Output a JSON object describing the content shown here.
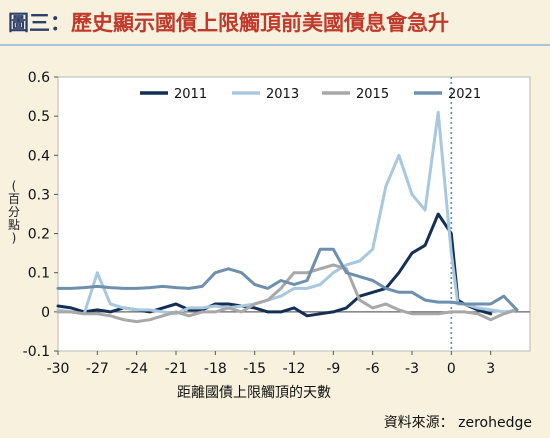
{
  "header": {
    "prefix": "圖三：",
    "title": "歷史顯示國債上限觸頂前美國債息會急升"
  },
  "source": "資料來源： zerohedge",
  "colors": {
    "s2011": "#142f56",
    "s2013": "#a8c8e0",
    "s2015": "#a8a8a8",
    "s2021": "#6e8fae",
    "dotted_line": "#6b8aa6",
    "background": "#f7f1de"
  },
  "chart_data": {
    "type": "line",
    "xlabel": "距離國債上限觸頂的天數",
    "ylabel": "(百分點)",
    "xlim": [
      -30,
      6
    ],
    "ylim": [
      -0.1,
      0.6
    ],
    "xticks": [
      -30,
      -27,
      -24,
      -21,
      -18,
      -15,
      -12,
      -9,
      -6,
      -3,
      0,
      3
    ],
    "yticks": [
      -0.1,
      0,
      0.1,
      0.2,
      0.3,
      0.4,
      0.5,
      0.6
    ],
    "yticklabels": [
      "-0.1",
      "0",
      "0.1",
      "0.2",
      "0.3",
      "0.4",
      "0.5",
      "0.6"
    ],
    "vline_x": 0,
    "grid": false,
    "legend_position": "top",
    "series": [
      {
        "name": "2011",
        "color_key": "s2011",
        "points": [
          [
            -30,
            0.015
          ],
          [
            -29,
            0.01
          ],
          [
            -28,
            0
          ],
          [
            -27,
            0.005
          ],
          [
            -26,
            0
          ],
          [
            -25,
            0.01
          ],
          [
            -24,
            0.005
          ],
          [
            -23,
            0
          ],
          [
            -22,
            0.01
          ],
          [
            -21,
            0.02
          ],
          [
            -20,
            0.005
          ],
          [
            -19,
            0.005
          ],
          [
            -18,
            0.02
          ],
          [
            -17,
            0.02
          ],
          [
            -16,
            0.015
          ],
          [
            -15,
            0.01
          ],
          [
            -14,
            0
          ],
          [
            -13,
            0
          ],
          [
            -12,
            0.01
          ],
          [
            -11,
            -0.01
          ],
          [
            -10,
            -0.005
          ],
          [
            -9,
            0
          ],
          [
            -8,
            0.01
          ],
          [
            -7,
            0.04
          ],
          [
            -6,
            0.05
          ],
          [
            -5,
            0.06
          ],
          [
            -4,
            0.1
          ],
          [
            -3,
            0.15
          ],
          [
            -2,
            0.17
          ],
          [
            -1,
            0.25
          ],
          [
            0,
            0.2
          ],
          [
            0.5,
            0.03
          ],
          [
            1,
            0.02
          ],
          [
            2,
            0.005
          ],
          [
            3,
            -0.005
          ]
        ]
      },
      {
        "name": "2013",
        "color_key": "s2013",
        "points": [
          [
            -30,
            0.005
          ],
          [
            -29,
            0
          ],
          [
            -28,
            -0.005
          ],
          [
            -27,
            0.1
          ],
          [
            -26,
            0.02
          ],
          [
            -25,
            0.01
          ],
          [
            -24,
            0.005
          ],
          [
            -23,
            0.005
          ],
          [
            -22,
            0
          ],
          [
            -21,
            -0.005
          ],
          [
            -20,
            0.01
          ],
          [
            -19,
            0.01
          ],
          [
            -18,
            0.015
          ],
          [
            -17,
            0.01
          ],
          [
            -16,
            0.015
          ],
          [
            -15,
            0.02
          ],
          [
            -14,
            0.03
          ],
          [
            -13,
            0.04
          ],
          [
            -12,
            0.06
          ],
          [
            -11,
            0.06
          ],
          [
            -10,
            0.07
          ],
          [
            -9,
            0.1
          ],
          [
            -8,
            0.12
          ],
          [
            -7,
            0.13
          ],
          [
            -6,
            0.16
          ],
          [
            -5,
            0.32
          ],
          [
            -4,
            0.4
          ],
          [
            -3,
            0.3
          ],
          [
            -2,
            0.26
          ],
          [
            -1,
            0.51
          ],
          [
            0,
            0.15
          ],
          [
            0.5,
            0.02
          ],
          [
            1,
            0.02
          ],
          [
            2,
            0.01
          ],
          [
            3,
            0.005
          ],
          [
            4,
            0
          ],
          [
            5,
            0.005
          ]
        ]
      },
      {
        "name": "2015",
        "color_key": "s2015",
        "points": [
          [
            -30,
            0
          ],
          [
            -29,
            0
          ],
          [
            -28,
            -0.005
          ],
          [
            -27,
            -0.005
          ],
          [
            -26,
            -0.01
          ],
          [
            -25,
            -0.02
          ],
          [
            -24,
            -0.025
          ],
          [
            -23,
            -0.02
          ],
          [
            -22,
            -0.01
          ],
          [
            -21,
            0
          ],
          [
            -20,
            -0.01
          ],
          [
            -19,
            0
          ],
          [
            -18,
            0
          ],
          [
            -17,
            0.01
          ],
          [
            -16,
            0
          ],
          [
            -15,
            0.02
          ],
          [
            -14,
            0.03
          ],
          [
            -13,
            0.06
          ],
          [
            -12,
            0.1
          ],
          [
            -11,
            0.1
          ],
          [
            -10,
            0.11
          ],
          [
            -9,
            0.12
          ],
          [
            -8,
            0.11
          ],
          [
            -7,
            0.03
          ],
          [
            -6,
            0.01
          ],
          [
            -5,
            0.02
          ],
          [
            -4,
            0.005
          ],
          [
            -3,
            -0.005
          ],
          [
            -2,
            -0.005
          ],
          [
            -1,
            -0.005
          ],
          [
            0,
            0
          ],
          [
            1,
            0
          ],
          [
            2,
            -0.005
          ],
          [
            3,
            -0.02
          ],
          [
            4,
            -0.005
          ],
          [
            5,
            0.005
          ]
        ]
      },
      {
        "name": "2021",
        "color_key": "s2021",
        "points": [
          [
            -30,
            0.06
          ],
          [
            -29,
            0.06
          ],
          [
            -28,
            0.062
          ],
          [
            -27,
            0.065
          ],
          [
            -26,
            0.062
          ],
          [
            -25,
            0.06
          ],
          [
            -24,
            0.06
          ],
          [
            -23,
            0.062
          ],
          [
            -22,
            0.065
          ],
          [
            -21,
            0.062
          ],
          [
            -20,
            0.06
          ],
          [
            -19,
            0.065
          ],
          [
            -18,
            0.1
          ],
          [
            -17,
            0.11
          ],
          [
            -16,
            0.1
          ],
          [
            -15,
            0.07
          ],
          [
            -14,
            0.06
          ],
          [
            -13,
            0.08
          ],
          [
            -12,
            0.07
          ],
          [
            -11,
            0.08
          ],
          [
            -10,
            0.16
          ],
          [
            -9,
            0.16
          ],
          [
            -8,
            0.1
          ],
          [
            -7,
            0.09
          ],
          [
            -6,
            0.08
          ],
          [
            -5,
            0.06
          ],
          [
            -4,
            0.05
          ],
          [
            -3,
            0.05
          ],
          [
            -2,
            0.03
          ],
          [
            -1,
            0.025
          ],
          [
            0,
            0.025
          ],
          [
            1,
            0.02
          ],
          [
            2,
            0.02
          ],
          [
            3,
            0.02
          ],
          [
            4,
            0.04
          ],
          [
            5,
            0.005
          ]
        ]
      }
    ]
  }
}
